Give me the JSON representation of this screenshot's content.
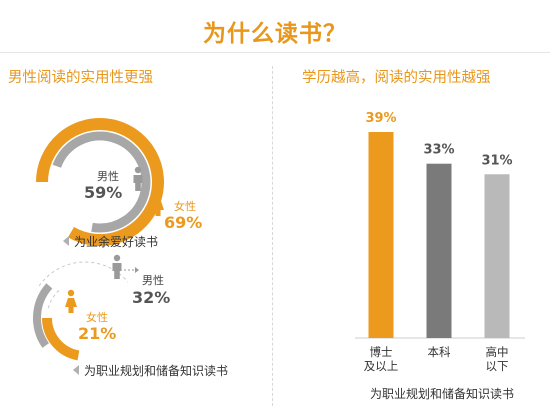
{
  "title": "为什么读书？",
  "left": {
    "subtitle": "男性阅读的实用性更强",
    "top_chart": {
      "caption": "为业余爱好读书",
      "male_label": "男性",
      "male_value": "59%",
      "female_label": "女性",
      "female_value": "69%"
    },
    "bottom_chart": {
      "caption": "为职业规划和储备知识读书",
      "male_label": "男性",
      "male_value": "32%",
      "female_label": "女性",
      "female_value": "21%"
    }
  },
  "right": {
    "subtitle": "学历越高，阅读的实用性越强",
    "xlabel": "为职业规划和储备知识读书"
  },
  "colors": {
    "orange": "#eb9a1e",
    "gray": "#a7a7a7",
    "dark_gray": "#7a7a7a",
    "light_gray": "#b9b9b9"
  },
  "chart_data": [
    {
      "type": "pie",
      "title": "为业余爱好读书",
      "series": [
        {
          "name": "男性",
          "values": [
            59
          ]
        },
        {
          "name": "女性",
          "values": [
            69
          ]
        }
      ]
    },
    {
      "type": "pie",
      "title": "为职业规划和储备知识读书",
      "series": [
        {
          "name": "男性",
          "values": [
            32
          ]
        },
        {
          "name": "女性",
          "values": [
            21
          ]
        }
      ]
    },
    {
      "type": "bar",
      "categories": [
        [
          "博士",
          "及以上"
        ],
        [
          "本科"
        ],
        [
          "高中",
          "以下"
        ]
      ],
      "values": [
        39,
        33,
        31
      ],
      "value_labels": [
        "39%",
        "33%",
        "31%"
      ],
      "colors": [
        "#eb9a1e",
        "#7a7a7a",
        "#b9b9b9"
      ],
      "xlabel": "为职业规划和储备知识读书",
      "ylabel": "",
      "ylim": [
        0,
        39
      ]
    }
  ]
}
